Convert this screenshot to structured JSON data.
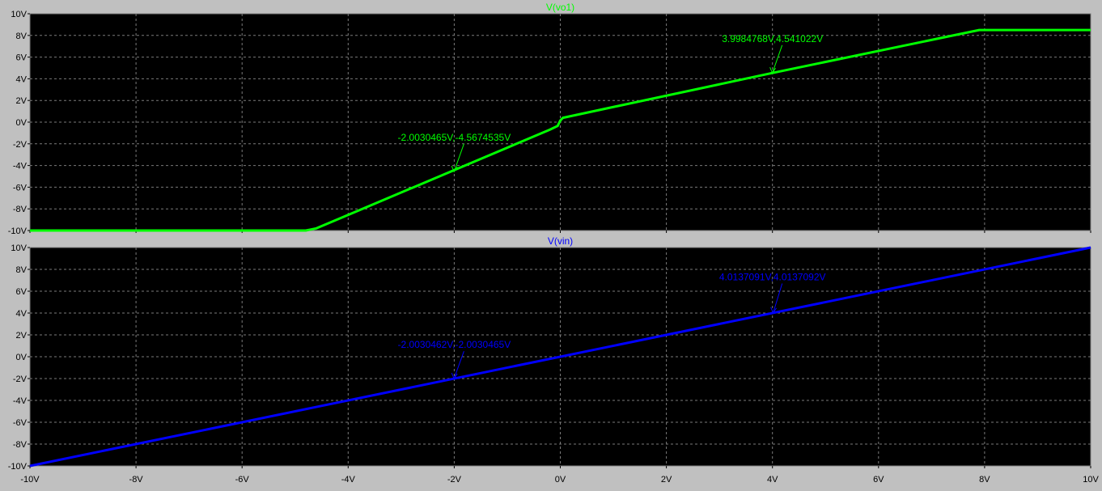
{
  "colors": {
    "background": "#c0c0c0",
    "plot_bg": "#000000",
    "grid": "#7a7a7a",
    "axis_text": "#000000",
    "vo1_trace": "#00ff00",
    "vin_trace": "#0000ff"
  },
  "chart_data": [
    {
      "type": "line",
      "title": "V(vo1)",
      "xlabel": "",
      "ylabel": "",
      "xlim": [
        -10,
        10
      ],
      "ylim": [
        -10,
        10
      ],
      "grid": true,
      "x_ticks": [
        "-10V",
        "-8V",
        "-6V",
        "-4V",
        "-2V",
        "0V",
        "2V",
        "4V",
        "6V",
        "8V",
        "10V"
      ],
      "y_ticks": [
        "-10V",
        "-8V",
        "-6V",
        "-4V",
        "-2V",
        "0V",
        "2V",
        "4V",
        "6V",
        "8V",
        "10V"
      ],
      "series": [
        {
          "name": "V(vo1)",
          "color": "#00ff00",
          "x": [
            -10,
            -4.8,
            -4.6,
            -0.2,
            -0.05,
            0.0,
            0.05,
            4.0,
            7.9,
            10
          ],
          "y": [
            -10,
            -10,
            -9.8,
            -0.7,
            -0.35,
            0.15,
            0.4,
            4.54,
            8.5,
            8.5
          ]
        }
      ],
      "annotations": [
        {
          "text": "-2.0030465V,-4.5674535V",
          "x": -2.0030465,
          "y": -4.5674535,
          "label_x": -2.0,
          "label_y": -1.7
        },
        {
          "text": "3.9984768V,4.541022V",
          "x": 3.9984768,
          "y": 4.541022,
          "label_x": 4.0,
          "label_y": 7.4
        }
      ]
    },
    {
      "type": "line",
      "title": "V(vin)",
      "xlabel": "",
      "ylabel": "",
      "xlim": [
        -10,
        10
      ],
      "ylim": [
        -10,
        10
      ],
      "grid": true,
      "x_ticks": [
        "-10V",
        "-8V",
        "-6V",
        "-4V",
        "-2V",
        "0V",
        "2V",
        "4V",
        "6V",
        "8V",
        "10V"
      ],
      "y_ticks": [
        "-10V",
        "-8V",
        "-6V",
        "-4V",
        "-2V",
        "0V",
        "2V",
        "4V",
        "6V",
        "8V",
        "10V"
      ],
      "series": [
        {
          "name": "V(vin)",
          "color": "#0000ff",
          "x": [
            -10,
            10
          ],
          "y": [
            -10,
            10
          ]
        }
      ],
      "annotations": [
        {
          "text": "-2.0030462V,-2.0030465V",
          "x": -2.0030462,
          "y": -2.0030465,
          "label_x": -2.0,
          "label_y": 0.8
        },
        {
          "text": "4.0137091V,4.0137092V",
          "x": 4.0137091,
          "y": 4.0137092,
          "label_x": 4.0,
          "label_y": 7.0
        }
      ]
    }
  ]
}
